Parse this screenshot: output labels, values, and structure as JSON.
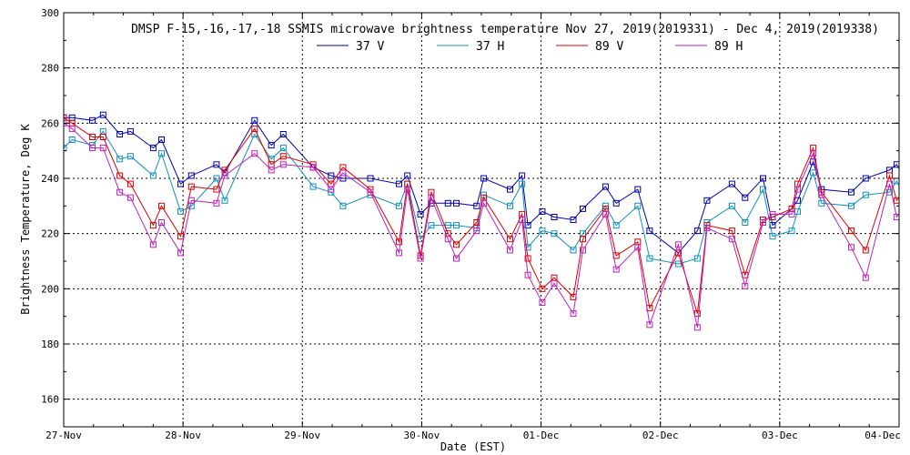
{
  "chart_data": {
    "type": "line",
    "title": "DMSP F-15,-16,-17,-18 SSMIS microwave brightness temperature Nov 27, 2019(2019331) - Dec  4, 2019(2019338)",
    "xlabel": "Date (EST)",
    "ylabel": "Brightness Temperature, Deg K",
    "xlim": [
      0,
      7
    ],
    "ylim": [
      150,
      300
    ],
    "yticks": [
      160,
      180,
      200,
      220,
      240,
      260,
      280,
      300
    ],
    "xticks": [
      0,
      1,
      2,
      3,
      4,
      5,
      6,
      7
    ],
    "xtick_labels": [
      "27-Nov",
      "28-Nov",
      "29-Nov",
      "30-Nov",
      "01-Dec",
      "02-Dec",
      "03-Dec",
      "04-Dec"
    ],
    "grid": true,
    "legend_position": "top-center",
    "x": [
      0.0,
      0.07,
      0.24,
      0.33,
      0.47,
      0.56,
      0.75,
      0.82,
      0.98,
      1.07,
      1.28,
      1.35,
      1.6,
      1.74,
      1.84,
      2.09,
      2.24,
      2.34,
      2.57,
      2.81,
      2.88,
      2.99,
      3.08,
      3.22,
      3.29,
      3.46,
      3.52,
      3.74,
      3.84,
      3.89,
      4.01,
      4.11,
      4.27,
      4.35,
      4.54,
      4.63,
      4.81,
      4.91,
      5.15,
      5.31,
      5.39,
      5.6,
      5.71,
      5.86,
      5.94,
      6.1,
      6.15,
      6.28,
      6.35,
      6.6,
      6.72,
      6.92,
      6.98,
      7.1
    ],
    "series": [
      {
        "name": "37 V",
        "color": "#0000b0",
        "values": [
          262,
          262,
          261,
          263,
          256,
          257,
          251,
          254,
          238,
          241,
          245,
          242,
          261,
          252,
          256,
          244,
          241,
          240,
          240,
          238,
          241,
          227,
          231,
          231,
          231,
          230,
          240,
          236,
          241,
          223,
          228,
          226,
          225,
          229,
          237,
          231,
          236,
          221,
          213,
          221,
          232,
          238,
          233,
          240,
          223,
          229,
          232,
          246,
          236,
          235,
          240,
          243,
          245,
          236
        ]
      },
      {
        "name": "37 H",
        "color": "#1090c0",
        "values": [
          251,
          254,
          252,
          257,
          247,
          248,
          241,
          249,
          228,
          230,
          240,
          232,
          256,
          247,
          251,
          237,
          235,
          230,
          234,
          230,
          238,
          218,
          223,
          223,
          223,
          222,
          234,
          230,
          238,
          215,
          221,
          220,
          214,
          220,
          230,
          223,
          230,
          211,
          209,
          211,
          224,
          230,
          224,
          236,
          219,
          221,
          228,
          242,
          231,
          230,
          234,
          235,
          239,
          229
        ]
      },
      {
        "name": "89 V",
        "color": "#e00000",
        "values": [
          262,
          260,
          255,
          255,
          241,
          238,
          223,
          230,
          219,
          237,
          236,
          243,
          258,
          245,
          248,
          245,
          238,
          244,
          236,
          217,
          238,
          212,
          235,
          220,
          216,
          224,
          233,
          218,
          227,
          211,
          200,
          204,
          197,
          218,
          229,
          212,
          217,
          193,
          213,
          191,
          223,
          221,
          205,
          225,
          226,
          229,
          238,
          251,
          235,
          221,
          214,
          241,
          232,
          239
        ]
      },
      {
        "name": "89 H",
        "color": "#c020c0",
        "values": [
          260,
          258,
          251,
          251,
          235,
          233,
          216,
          224,
          213,
          232,
          231,
          241,
          249,
          243,
          245,
          244,
          236,
          242,
          235,
          213,
          236,
          211,
          233,
          218,
          211,
          221,
          231,
          214,
          225,
          205,
          195,
          202,
          191,
          214,
          227,
          207,
          215,
          187,
          216,
          186,
          222,
          218,
          201,
          224,
          227,
          227,
          236,
          249,
          234,
          215,
          204,
          238,
          226,
          233
        ]
      }
    ]
  }
}
